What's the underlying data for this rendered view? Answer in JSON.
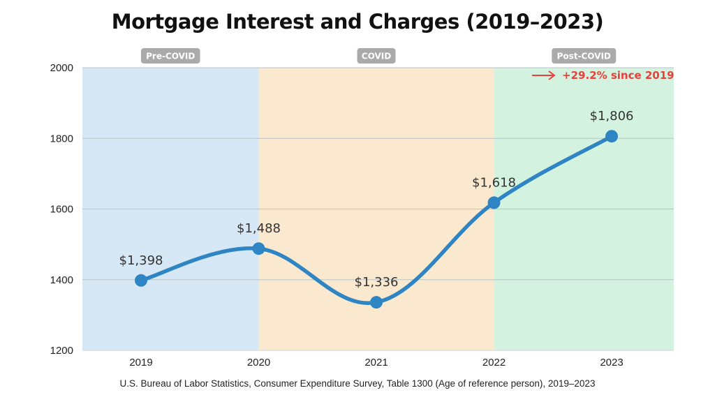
{
  "chart_data": {
    "type": "line",
    "title": "Mortgage Interest and Charges (2019–2023)",
    "source": "U.S. Bureau of Labor Statistics, Consumer Expenditure Survey, Table 1300 (Age of reference person), 2019–2023",
    "xlabel": "",
    "ylabel": "",
    "categories": [
      "2019",
      "2020",
      "2021",
      "2022",
      "2023"
    ],
    "series": [
      {
        "values": [
          1398,
          1488,
          1336,
          1618,
          1806
        ],
        "color": "#2f85c4"
      }
    ],
    "data_labels": [
      "$1,398",
      "$1,488",
      "$1,336",
      "$1,618",
      "$1,806"
    ],
    "ylim": [
      1200,
      2000
    ],
    "yticks": [
      1200,
      1400,
      1600,
      1800,
      2000
    ],
    "grid": true,
    "periods": [
      {
        "label": "Pre-COVID",
        "from": "2019",
        "to": "2020",
        "color": "#d6e8f5"
      },
      {
        "label": "COVID",
        "from": "2020",
        "to": "2022",
        "color": "#fbe9cf"
      },
      {
        "label": "Post-COVID",
        "from": "2022",
        "to": "2023",
        "color": "#d4f2e0"
      }
    ],
    "annotation": {
      "text": "+29.2% since 2019",
      "color": "#e8403a"
    }
  }
}
